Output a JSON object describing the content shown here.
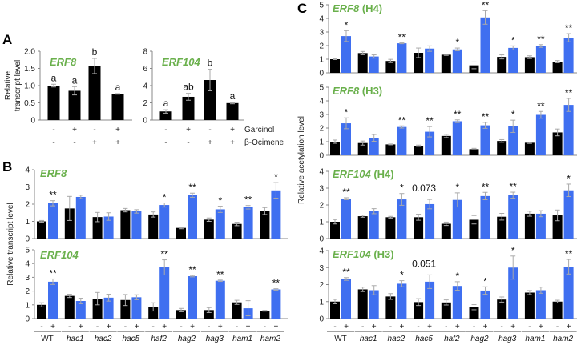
{
  "colors": {
    "control": "#000000",
    "treated": "#3f6ff0",
    "title": "#6ab04c",
    "error": "#aaaaaa"
  },
  "panels": {
    "a": "A",
    "b": "B",
    "c": "C"
  },
  "panel_a": {
    "ylabel_line1": "Relative",
    "ylabel_line2": "transcript level",
    "row_labels": [
      "Garcinol",
      "β-Ocimene"
    ],
    "garcinol": [
      "-",
      "+",
      "-",
      "+"
    ],
    "ocimene": [
      "-",
      "-",
      "+",
      "+"
    ]
  },
  "panel_b": {
    "ylabel": "Relative transcript level"
  },
  "panel_c": {
    "ylabel": "Relative acetylation level"
  },
  "genotypes": [
    "WT",
    "hac1",
    "hac2",
    "hac5",
    "haf2",
    "hag2",
    "hag3",
    "ham1",
    "ham2"
  ],
  "treatment_signs": [
    "-",
    "+"
  ],
  "chart_data": [
    {
      "id": "A-ERF8",
      "type": "bar",
      "title": "ERF8",
      "title_suffix": "",
      "ylim": [
        0,
        2.0
      ],
      "yticks": [
        "0",
        "0.5",
        "1.0",
        "1.5",
        "2.0"
      ],
      "values": [
        1.0,
        0.85,
        1.57,
        0.76
      ],
      "errors": [
        0.04,
        0.12,
        0.22,
        0.01
      ],
      "letters": [
        "a",
        "a",
        "b",
        "a"
      ]
    },
    {
      "id": "A-ERF104",
      "type": "bar",
      "title": "ERF104",
      "title_suffix": "",
      "ylim": [
        0,
        8
      ],
      "yticks": [
        "0",
        "2",
        "4",
        "6",
        "8"
      ],
      "values": [
        1.0,
        2.7,
        4.65,
        1.97
      ],
      "errors": [
        0.2,
        0.4,
        1.25,
        0.08
      ],
      "letters": [
        "a",
        "ab",
        "b",
        "a"
      ]
    },
    {
      "id": "B-ERF8",
      "type": "bar",
      "title": "ERF8",
      "title_suffix": "",
      "ylim": [
        0,
        4
      ],
      "yticks": [
        "0",
        "1",
        "2",
        "3",
        "4"
      ],
      "control": [
        1.0,
        1.75,
        1.25,
        1.65,
        1.4,
        0.62,
        1.1,
        0.85,
        1.6
      ],
      "control_err": [
        0.05,
        0.7,
        0.27,
        0.1,
        0.15,
        0.05,
        0.1,
        0.1,
        0.2
      ],
      "treated": [
        2.05,
        2.42,
        1.28,
        1.58,
        1.95,
        2.52,
        1.7,
        1.82,
        2.8
      ],
      "treated_err": [
        0.15,
        0.1,
        0.22,
        0.1,
        0.12,
        0.12,
        0.18,
        0.1,
        0.45
      ],
      "sig": [
        "**",
        "",
        "",
        "",
        "*",
        "**",
        "*",
        "**",
        "*"
      ]
    },
    {
      "id": "B-ERF104",
      "type": "bar",
      "title": "ERF104",
      "title_suffix": "",
      "ylim": [
        0,
        5
      ],
      "yticks": [
        "0",
        "1",
        "2",
        "3",
        "4",
        "5"
      ],
      "control": [
        1.0,
        1.65,
        1.45,
        1.35,
        0.85,
        0.62,
        0.62,
        1.18,
        0.57
      ],
      "control_err": [
        0.15,
        0.12,
        0.45,
        0.4,
        0.3,
        0.12,
        0.18,
        0.15,
        0.03
      ],
      "treated": [
        2.68,
        1.28,
        1.52,
        1.55,
        3.72,
        3.08,
        2.75,
        0.75,
        2.12
      ],
      "treated_err": [
        0.2,
        0.2,
        0.25,
        0.18,
        0.55,
        0.05,
        0.05,
        0.55,
        0.05
      ],
      "sig": [
        "**",
        "",
        "",
        "",
        "**",
        "**",
        "**",
        "",
        "**"
      ]
    },
    {
      "id": "C-ERF8-H4",
      "type": "bar",
      "title": "ERF8",
      "title_suffix": " (H4)",
      "ylim": [
        0,
        5
      ],
      "yticks": [
        "0",
        "1",
        "2",
        "3",
        "4",
        "5"
      ],
      "control": [
        1.0,
        1.45,
        0.87,
        1.47,
        1.33,
        0.55,
        1.17,
        1.15,
        0.82
      ],
      "control_err": [
        0.03,
        0.12,
        0.12,
        0.35,
        0.05,
        0.25,
        0.15,
        0.1,
        0.08
      ],
      "treated": [
        2.7,
        1.2,
        2.17,
        1.78,
        1.72,
        4.07,
        1.83,
        1.97,
        2.58
      ],
      "treated_err": [
        0.4,
        0.12,
        0.03,
        0.2,
        0.1,
        0.5,
        0.15,
        0.1,
        0.3
      ],
      "sig": [
        "*",
        "",
        "**",
        "",
        "*",
        "**",
        "*",
        "**",
        "**"
      ]
    },
    {
      "id": "C-ERF8-H3",
      "type": "bar",
      "title": "ERF8",
      "title_suffix": " (H3)",
      "ylim": [
        0,
        5
      ],
      "yticks": [
        "0",
        "1",
        "2",
        "3",
        "4",
        "5"
      ],
      "control": [
        1.0,
        0.9,
        0.8,
        0.7,
        1.42,
        0.45,
        1.05,
        0.92,
        1.68
      ],
      "control_err": [
        0.12,
        0.15,
        0.03,
        0.05,
        0.12,
        0.06,
        0.1,
        0.05,
        0.25
      ],
      "treated": [
        2.35,
        1.28,
        2.08,
        1.73,
        2.5,
        2.2,
        2.13,
        2.97,
        3.7
      ],
      "treated_err": [
        0.4,
        0.25,
        0.08,
        0.38,
        0.1,
        0.22,
        0.45,
        0.25,
        0.48
      ],
      "sig": [
        "*",
        "",
        "**",
        "**",
        "**",
        "**",
        "*",
        "**",
        "**"
      ]
    },
    {
      "id": "C-ERF104-H4",
      "type": "bar",
      "title": "ERF104",
      "title_suffix": " (H4)",
      "ylim": [
        0,
        4
      ],
      "yticks": [
        "0",
        "1",
        "2",
        "3",
        "4"
      ],
      "control": [
        1.0,
        1.33,
        1.27,
        1.27,
        0.88,
        1.12,
        1.3,
        1.48,
        1.38
      ],
      "control_err": [
        0.13,
        0.06,
        0.05,
        0.18,
        0.1,
        0.25,
        0.2,
        0.15,
        0.32
      ],
      "treated": [
        2.37,
        1.63,
        2.33,
        2.05,
        2.3,
        2.53,
        2.58,
        1.48,
        2.87
      ],
      "treated_err": [
        0.06,
        0.15,
        0.35,
        0.28,
        0.42,
        0.22,
        0.18,
        0.18,
        0.37
      ],
      "sig": [
        "**",
        "",
        "*",
        "0.073",
        "*",
        "**",
        "**",
        "",
        "*"
      ]
    },
    {
      "id": "C-ERF104-H3",
      "type": "bar",
      "title": "ERF104",
      "title_suffix": " (H3)",
      "ylim": [
        0,
        4
      ],
      "yticks": [
        "0",
        "1",
        "2",
        "3",
        "4"
      ],
      "control": [
        1.0,
        1.72,
        1.3,
        0.97,
        0.95,
        0.67,
        1.12,
        1.53,
        1.0
      ],
      "control_err": [
        0.13,
        0.13,
        0.17,
        0.2,
        0.15,
        0.15,
        0.15,
        0.12,
        0.08
      ],
      "treated": [
        2.33,
        1.67,
        2.05,
        2.17,
        1.92,
        1.65,
        3.0,
        1.67,
        3.05
      ],
      "treated_err": [
        0.08,
        0.27,
        0.18,
        0.4,
        0.25,
        0.22,
        0.68,
        0.18,
        0.43
      ],
      "sig": [
        "**",
        "",
        "*",
        "0.051",
        "*",
        "*",
        "*",
        "",
        "**"
      ]
    }
  ]
}
